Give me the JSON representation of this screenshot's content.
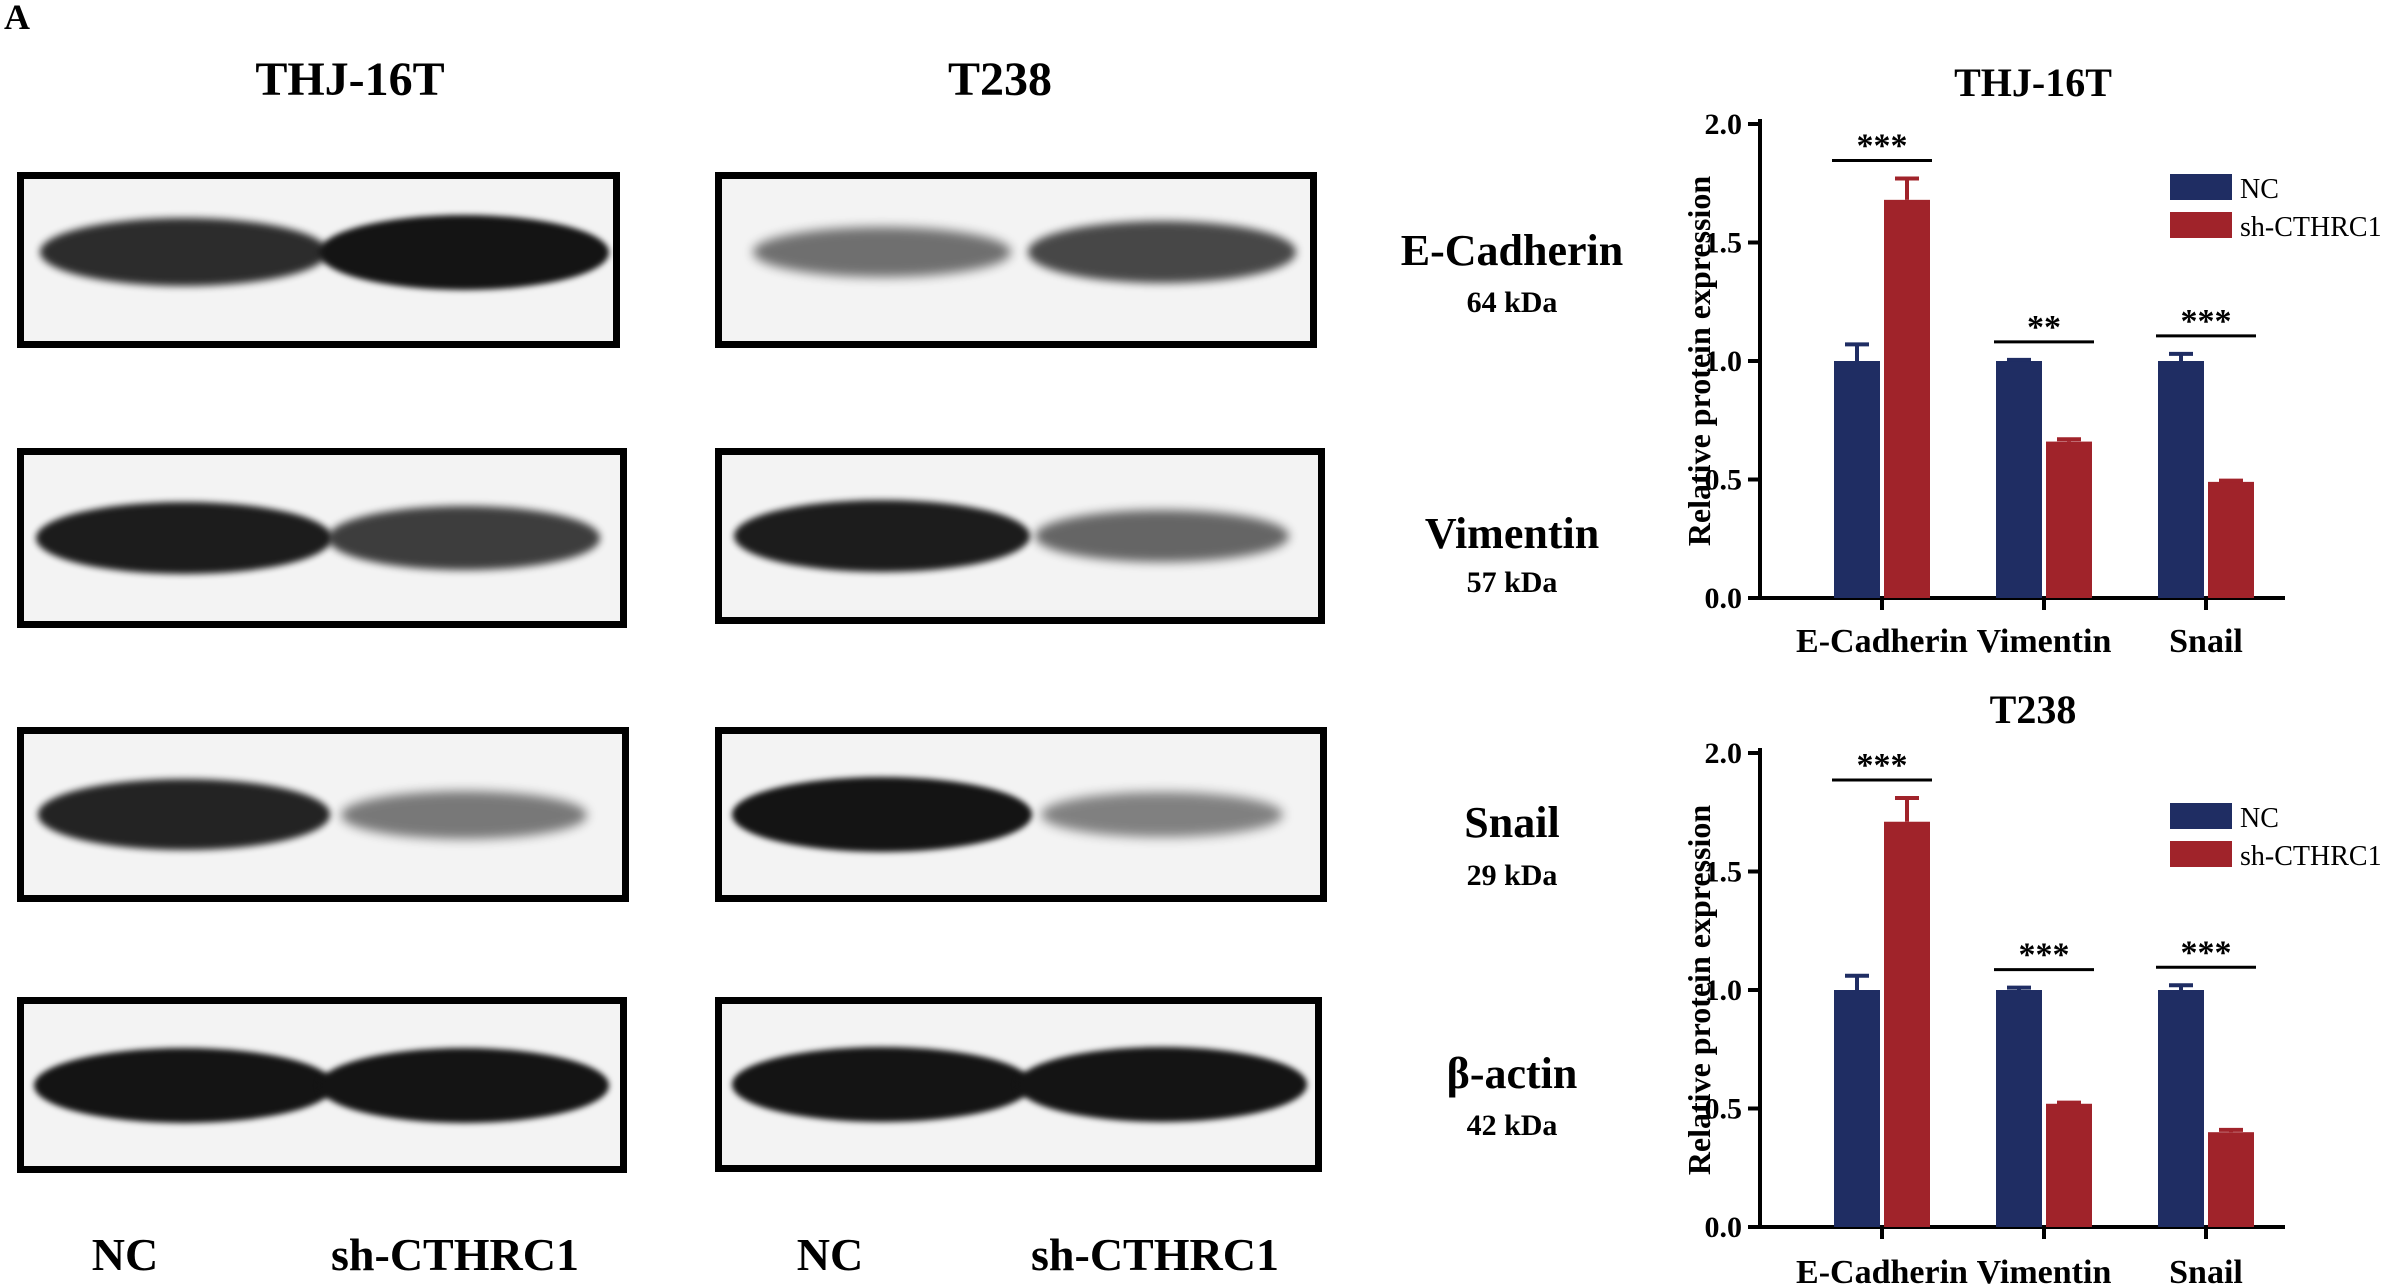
{
  "panel_label": "A",
  "western_blot": {
    "groups": [
      {
        "title": "THJ-16T",
        "lanes": [
          "NC",
          "sh-CTHRC1"
        ]
      },
      {
        "title": "T238",
        "lanes": [
          "NC",
          "sh-CTHRC1"
        ]
      }
    ],
    "proteins": [
      {
        "name": "E-Cadherin",
        "kda": "64 kDa"
      },
      {
        "name": "Vimentin",
        "kda": "57 kDa"
      },
      {
        "name": "Snail",
        "kda": "29 kDa"
      },
      {
        "name": "β-actin",
        "kda": "42 kDa"
      }
    ],
    "band_intensity": [
      [
        [
          0.85,
          1.0
        ],
        [
          0.45,
          0.7
        ]
      ],
      [
        [
          0.95,
          0.75
        ],
        [
          0.95,
          0.5
        ]
      ],
      [
        [
          0.9,
          0.4
        ],
        [
          1.0,
          0.35
        ]
      ],
      [
        [
          1.0,
          1.0
        ],
        [
          1.0,
          1.0
        ]
      ]
    ]
  },
  "colors": {
    "nc": "#1f2d63",
    "sh": "#a0232a"
  },
  "chart_data": [
    {
      "type": "bar",
      "title": "THJ-16T",
      "ylabel": "Relative  protein expression",
      "categories": [
        "E-Cadherin",
        "Vimentin",
        "Snail"
      ],
      "ylim": [
        0,
        2.0
      ],
      "yticks": [
        "0.0",
        "0.5",
        "1.0",
        "1.5",
        "2.0"
      ],
      "series": [
        {
          "name": "NC",
          "values": [
            1.0,
            1.0,
            1.0
          ],
          "errors": [
            0.07,
            0.005,
            0.03
          ]
        },
        {
          "name": "sh-CTHRC1",
          "values": [
            1.68,
            0.66,
            0.49
          ],
          "errors": [
            0.09,
            0.01,
            0.005
          ]
        }
      ],
      "significance": [
        "***",
        "**",
        "***"
      ],
      "legend": "right"
    },
    {
      "type": "bar",
      "title": "T238",
      "ylabel": "Relative  protein expression",
      "categories": [
        "E-Cadherin",
        "Vimentin",
        "Snail"
      ],
      "ylim": [
        0,
        2.0
      ],
      "yticks": [
        "0.0",
        "0.5",
        "1.0",
        "1.5",
        "2.0"
      ],
      "series": [
        {
          "name": "NC",
          "values": [
            1.0,
            1.0,
            1.0
          ],
          "errors": [
            0.06,
            0.01,
            0.02
          ]
        },
        {
          "name": "sh-CTHRC1",
          "values": [
            1.71,
            0.52,
            0.4
          ],
          "errors": [
            0.1,
            0.005,
            0.01
          ]
        }
      ],
      "significance": [
        "***",
        "***",
        "***"
      ],
      "legend": "right"
    }
  ]
}
